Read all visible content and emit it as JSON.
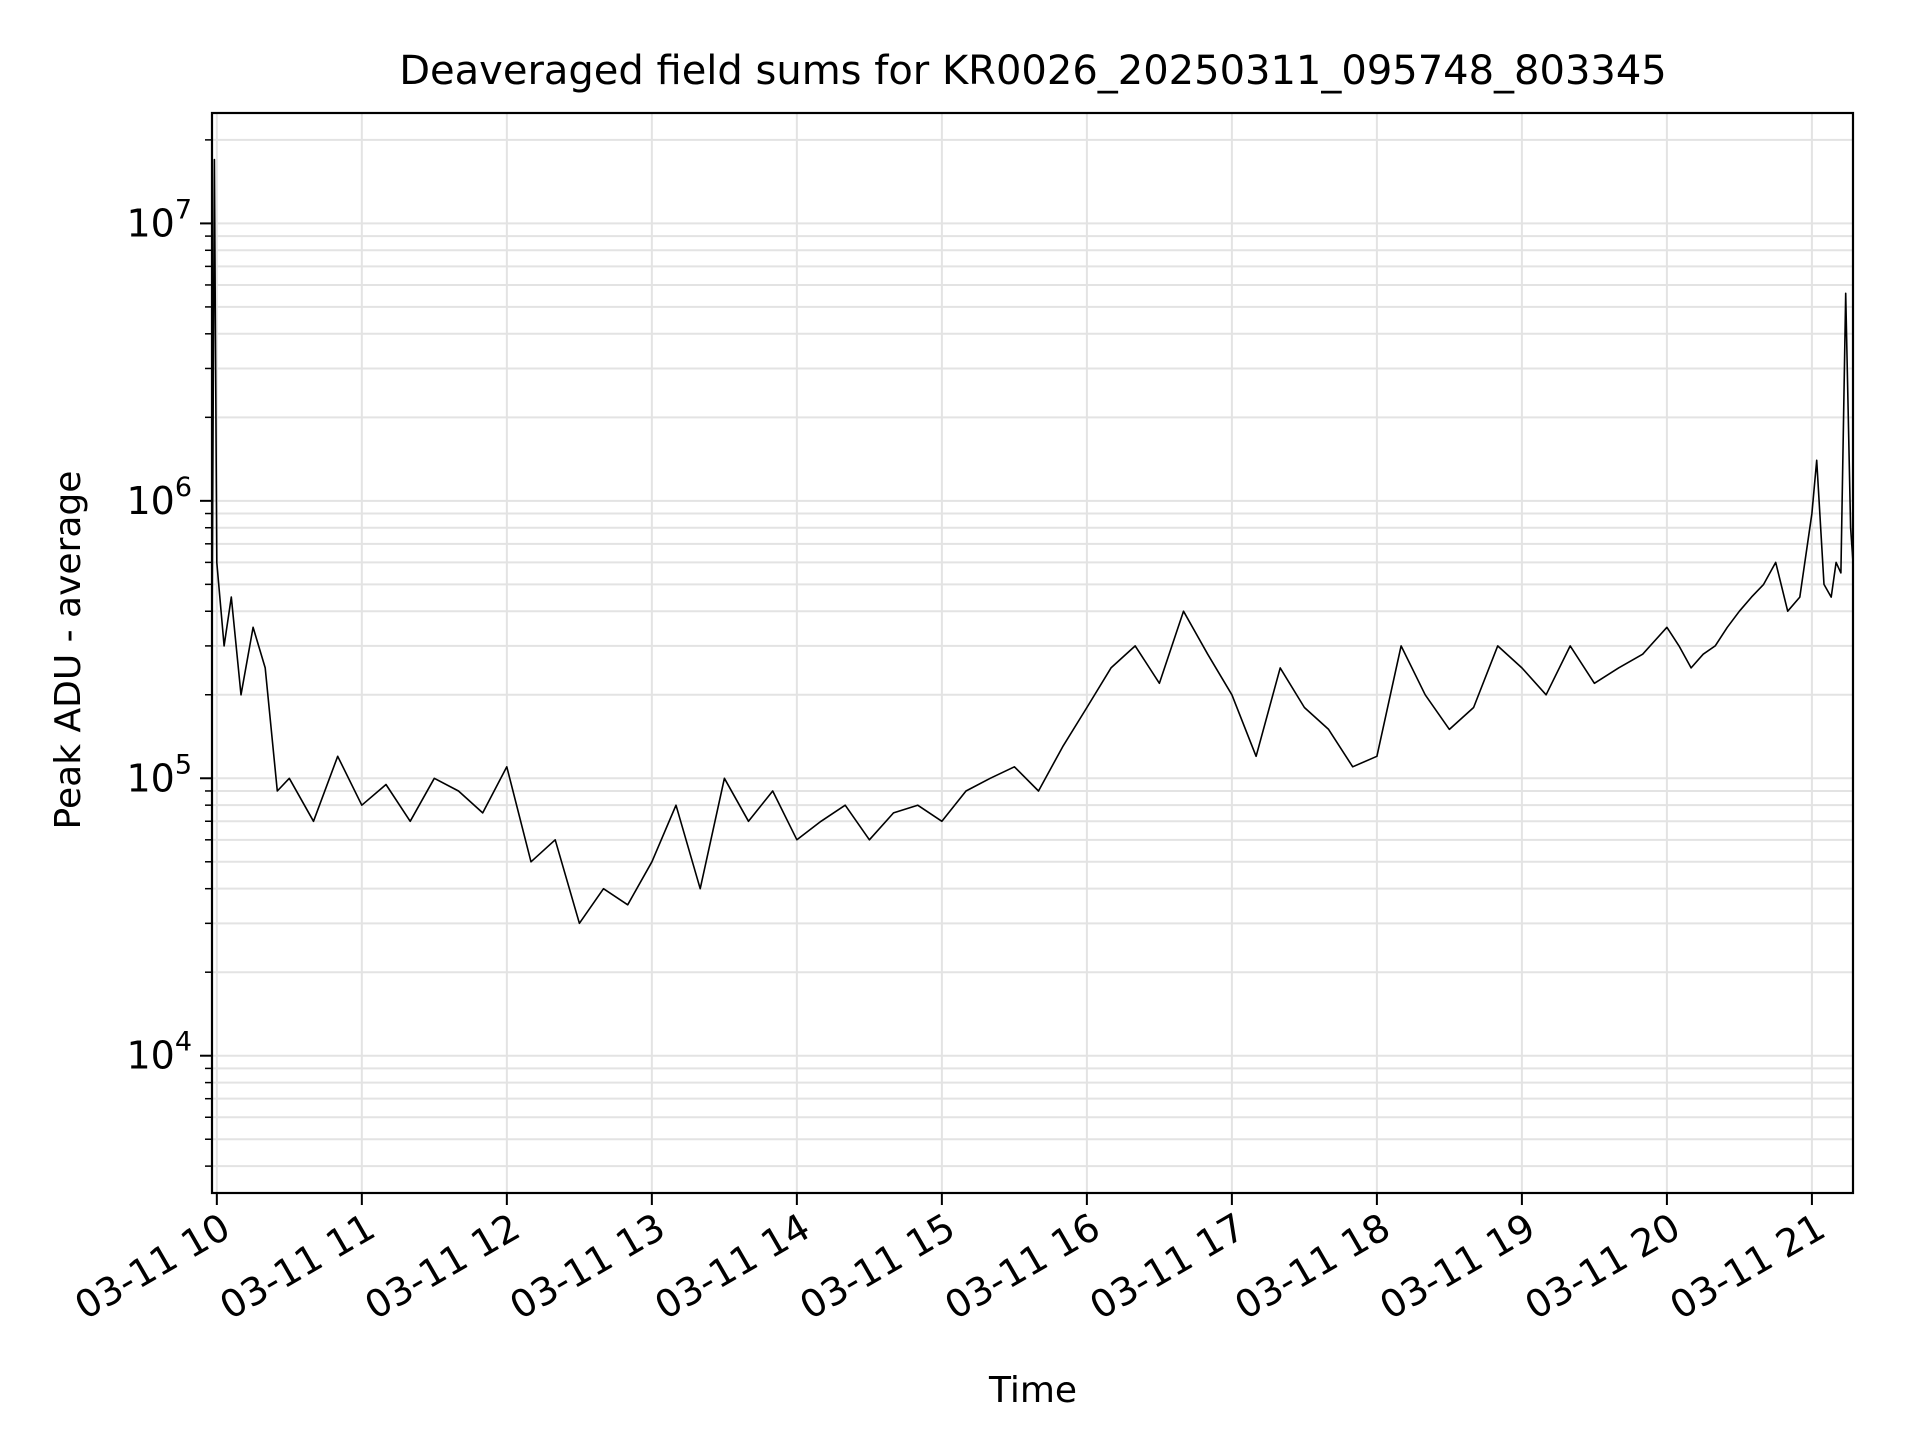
{
  "chart_data": {
    "type": "line",
    "title": "Deaveraged field sums for KR0026_20250311_095748_803345",
    "xlabel": "Time",
    "ylabel": "Peak ADU - average",
    "yscale": "log",
    "ylim": [
      3200,
      25000000
    ],
    "xlim": [
      "2025-03-11 09:58",
      "2025-03-11 21:17"
    ],
    "grid": true,
    "legend": "none",
    "line_color": "#000000",
    "y_ticks": [
      {
        "value": 10000,
        "base": "10",
        "exp": "4"
      },
      {
        "value": 100000,
        "base": "10",
        "exp": "5"
      },
      {
        "value": 1000000,
        "base": "10",
        "exp": "6"
      },
      {
        "value": 10000000,
        "base": "10",
        "exp": "7"
      }
    ],
    "x_ticks": [
      {
        "value": "2025-03-11 10:00",
        "label": "03-11 10"
      },
      {
        "value": "2025-03-11 11:00",
        "label": "03-11 11"
      },
      {
        "value": "2025-03-11 12:00",
        "label": "03-11 12"
      },
      {
        "value": "2025-03-11 13:00",
        "label": "03-11 13"
      },
      {
        "value": "2025-03-11 14:00",
        "label": "03-11 14"
      },
      {
        "value": "2025-03-11 15:00",
        "label": "03-11 15"
      },
      {
        "value": "2025-03-11 16:00",
        "label": "03-11 16"
      },
      {
        "value": "2025-03-11 17:00",
        "label": "03-11 17"
      },
      {
        "value": "2025-03-11 18:00",
        "label": "03-11 18"
      },
      {
        "value": "2025-03-11 19:00",
        "label": "03-11 19"
      },
      {
        "value": "2025-03-11 20:00",
        "label": "03-11 20"
      },
      {
        "value": "2025-03-11 21:00",
        "label": "03-11 21"
      }
    ],
    "series": [
      {
        "color": "#000000",
        "x": [
          "2025-03-11 09:58",
          "2025-03-11 09:59",
          "2025-03-11 10:00",
          "2025-03-11 10:03",
          "2025-03-11 10:06",
          "2025-03-11 10:10",
          "2025-03-11 10:15",
          "2025-03-11 10:20",
          "2025-03-11 10:25",
          "2025-03-11 10:30",
          "2025-03-11 10:40",
          "2025-03-11 10:50",
          "2025-03-11 11:00",
          "2025-03-11 11:10",
          "2025-03-11 11:20",
          "2025-03-11 11:30",
          "2025-03-11 11:40",
          "2025-03-11 11:50",
          "2025-03-11 12:00",
          "2025-03-11 12:10",
          "2025-03-11 12:20",
          "2025-03-11 12:30",
          "2025-03-11 12:40",
          "2025-03-11 12:50",
          "2025-03-11 13:00",
          "2025-03-11 13:10",
          "2025-03-11 13:20",
          "2025-03-11 13:30",
          "2025-03-11 13:40",
          "2025-03-11 13:50",
          "2025-03-11 14:00",
          "2025-03-11 14:10",
          "2025-03-11 14:20",
          "2025-03-11 14:30",
          "2025-03-11 14:40",
          "2025-03-11 14:50",
          "2025-03-11 15:00",
          "2025-03-11 15:10",
          "2025-03-11 15:20",
          "2025-03-11 15:30",
          "2025-03-11 15:40",
          "2025-03-11 15:50",
          "2025-03-11 16:00",
          "2025-03-11 16:10",
          "2025-03-11 16:20",
          "2025-03-11 16:30",
          "2025-03-11 16:40",
          "2025-03-11 16:50",
          "2025-03-11 17:00",
          "2025-03-11 17:10",
          "2025-03-11 17:20",
          "2025-03-11 17:30",
          "2025-03-11 17:40",
          "2025-03-11 17:50",
          "2025-03-11 18:00",
          "2025-03-11 18:10",
          "2025-03-11 18:20",
          "2025-03-11 18:30",
          "2025-03-11 18:40",
          "2025-03-11 18:50",
          "2025-03-11 19:00",
          "2025-03-11 19:10",
          "2025-03-11 19:20",
          "2025-03-11 19:30",
          "2025-03-11 19:40",
          "2025-03-11 19:50",
          "2025-03-11 20:00",
          "2025-03-11 20:05",
          "2025-03-11 20:10",
          "2025-03-11 20:15",
          "2025-03-11 20:20",
          "2025-03-11 20:25",
          "2025-03-11 20:30",
          "2025-03-11 20:35",
          "2025-03-11 20:40",
          "2025-03-11 20:45",
          "2025-03-11 20:50",
          "2025-03-11 20:55",
          "2025-03-11 21:00",
          "2025-03-11 21:02",
          "2025-03-11 21:05",
          "2025-03-11 21:08",
          "2025-03-11 21:10",
          "2025-03-11 21:12",
          "2025-03-11 21:14",
          "2025-03-11 21:16",
          "2025-03-11 21:17"
        ],
        "values": [
          300000,
          17000000,
          600000,
          300000,
          450000,
          200000,
          350000,
          250000,
          90000,
          100000,
          70000,
          120000,
          80000,
          95000,
          70000,
          100000,
          90000,
          75000,
          110000,
          50000,
          60000,
          30000,
          40000,
          35000,
          50000,
          80000,
          40000,
          100000,
          70000,
          90000,
          60000,
          70000,
          80000,
          60000,
          75000,
          80000,
          70000,
          90000,
          100000,
          110000,
          90000,
          130000,
          180000,
          250000,
          300000,
          220000,
          400000,
          280000,
          200000,
          120000,
          250000,
          180000,
          150000,
          110000,
          120000,
          300000,
          200000,
          150000,
          180000,
          300000,
          250000,
          200000,
          300000,
          220000,
          250000,
          280000,
          350000,
          300000,
          250000,
          280000,
          300000,
          350000,
          400000,
          450000,
          500000,
          600000,
          400000,
          450000,
          900000,
          1400000,
          500000,
          450000,
          600000,
          550000,
          5600000,
          800000,
          600000
        ]
      }
    ]
  }
}
